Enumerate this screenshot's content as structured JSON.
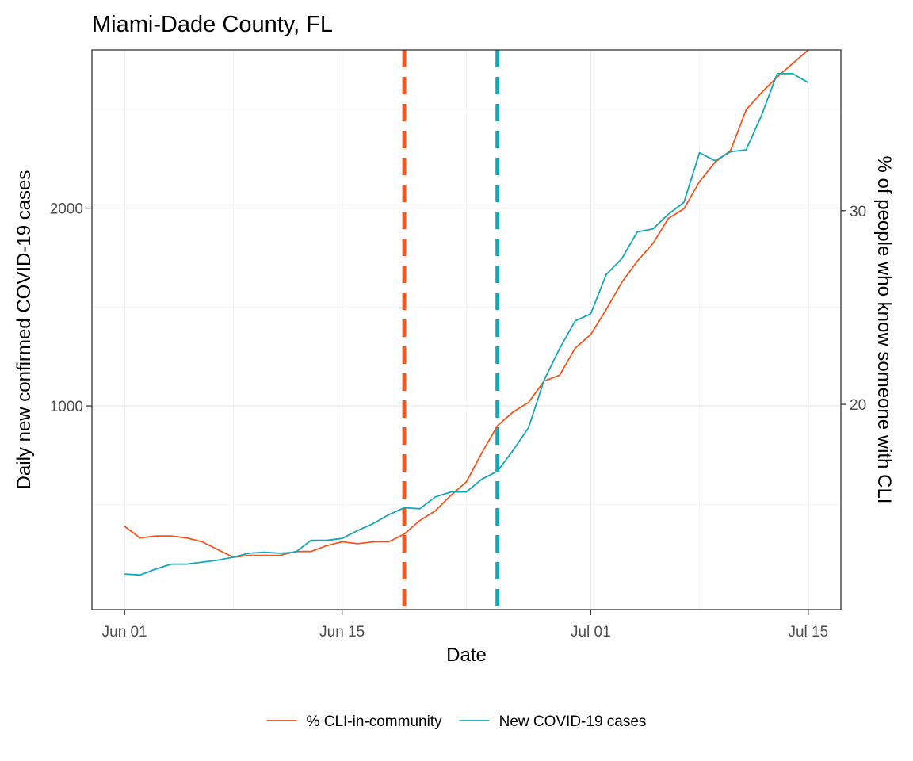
{
  "chart_data": {
    "type": "line",
    "title": "Miami-Dade County, FL",
    "xlabel": "Date",
    "ylabel": "Daily new confirmed COVID-19 cases",
    "y2label": "% of people who know someone with CLI",
    "x_ticks": [
      {
        "label": "Jun 01",
        "day": 0
      },
      {
        "label": "Jun 15",
        "day": 14
      },
      {
        "label": "Jul 01",
        "day": 30
      },
      {
        "label": "Jul 15",
        "day": 44
      }
    ],
    "x_range_days": [
      -2.1,
      46.1
    ],
    "ylim": [
      -30,
      2800
    ],
    "y_ticks": [
      1000,
      2000
    ],
    "y_minor": [
      500,
      1500,
      2500
    ],
    "y2lim": [
      9.4,
      38.3
    ],
    "y2_ticks": [
      20,
      30
    ],
    "y2_minor": [
      15,
      25,
      35
    ],
    "legend_position": "bottom",
    "vlines": [
      {
        "day": 18,
        "color": "#f4561f",
        "style": "dashed"
      },
      {
        "day": 24,
        "color": "#13a8b8",
        "style": "dashed"
      }
    ],
    "series": [
      {
        "name": "% CLI-in-community",
        "axis": "right",
        "color": "#f4561f",
        "values": [
          13.7,
          13.1,
          13.2,
          13.2,
          13.1,
          12.9,
          12.5,
          12.1,
          12.2,
          12.2,
          12.2,
          12.4,
          12.4,
          12.7,
          12.9,
          12.8,
          12.9,
          12.9,
          13.3,
          14.0,
          14.5,
          15.3,
          16.0,
          17.5,
          18.9,
          19.6,
          20.1,
          21.2,
          21.5,
          22.9,
          23.6,
          24.9,
          26.3,
          27.4,
          28.3,
          29.6,
          30.1,
          31.5,
          32.5,
          33.1,
          35.2,
          36.1,
          36.9,
          37.6,
          38.3
        ]
      },
      {
        "name": "New COVID-19 cases",
        "axis": "left",
        "color": "#13a8b8",
        "values": [
          150,
          145,
          175,
          200,
          200,
          210,
          220,
          235,
          255,
          260,
          255,
          260,
          320,
          320,
          330,
          370,
          405,
          450,
          485,
          480,
          540,
          565,
          565,
          630,
          670,
          775,
          890,
          1130,
          1290,
          1430,
          1465,
          1665,
          1745,
          1880,
          1895,
          1970,
          2030,
          2280,
          2240,
          2285,
          2295,
          2470,
          2680,
          2680,
          2635
        ]
      }
    ]
  }
}
